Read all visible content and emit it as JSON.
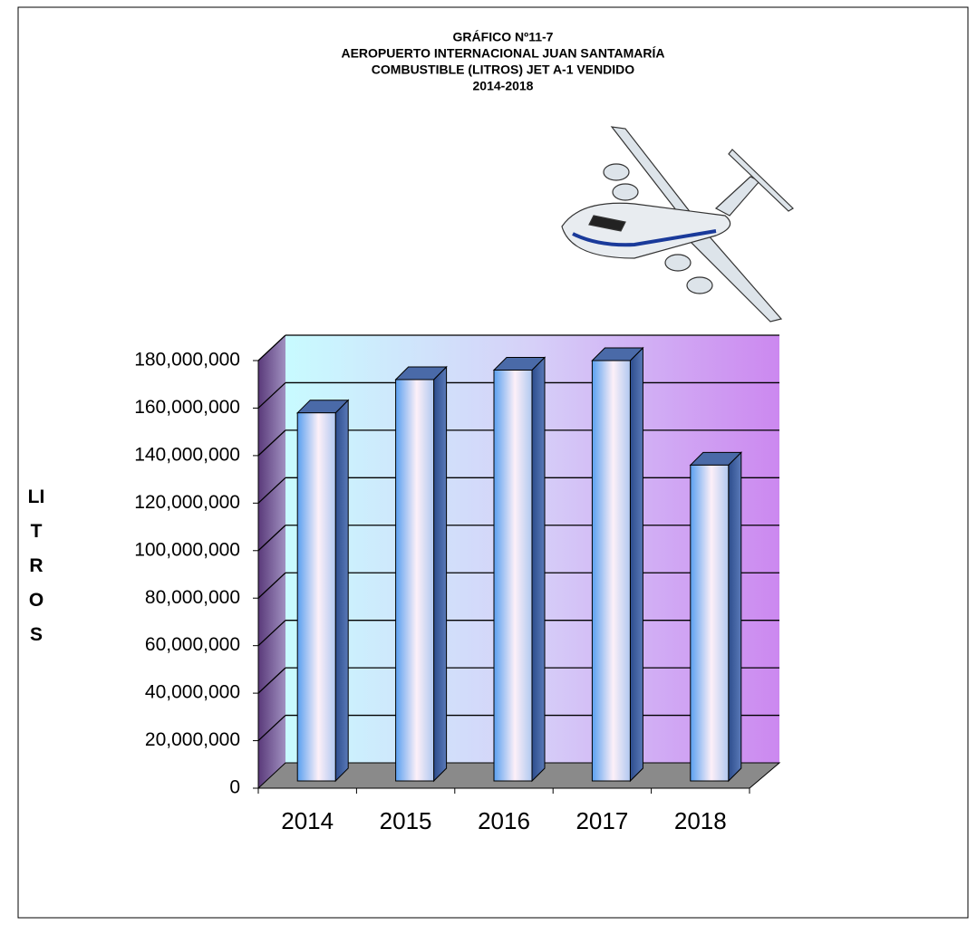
{
  "chart_data": {
    "type": "bar3d",
    "title": [
      "GRÁFICO Nº11-7",
      "AEROPUERTO INTERNACIONAL JUAN SANTAMARÍA",
      "COMBUSTIBLE (LITROS) JET A-1 VENDIDO",
      "2014-2018"
    ],
    "y_label": "LITROS",
    "categories": [
      "2014",
      "2015",
      "2016",
      "2017",
      "2018"
    ],
    "values": [
      158000000,
      172000000,
      176000000,
      180000000,
      136000000
    ],
    "ylim": [
      0,
      180000000
    ],
    "yticks": [
      0,
      {
        "value": 20000000,
        "label": "20,000,000"
      },
      {
        "value": 40000000,
        "label": "40,000,000"
      },
      {
        "value": 60000000,
        "label": "60,000,000"
      },
      {
        "value": 80000000,
        "label": "80,000,000"
      },
      {
        "value": 100000000,
        "label": "100,000,000"
      },
      {
        "value": 120000000,
        "label": "120,000,000"
      },
      {
        "value": 140000000,
        "label": "140,000,000"
      },
      {
        "value": 160000000,
        "label": "160,000,000"
      },
      {
        "value": 180000000,
        "label": "180,000,000"
      }
    ],
    "grid": true
  }
}
